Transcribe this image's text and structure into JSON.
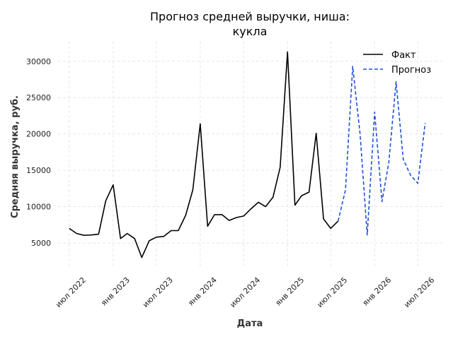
{
  "chart_data": {
    "type": "line",
    "title_lines": [
      "Прогноз средней выручки, ниша:",
      "кукла"
    ],
    "xlabel": "Дата",
    "ylabel": "Средняя выручка, руб.",
    "x_ticks": [
      "2022-07-01",
      "2023-01-01",
      "2023-07-01",
      "2024-01-01",
      "2024-07-01",
      "2025-01-01",
      "2025-07-01",
      "2026-01-01",
      "2026-07-01"
    ],
    "x_tick_labels": [
      "июл 2022",
      "янв 2023",
      "июл 2023",
      "янв 2024",
      "июл 2024",
      "янв 2025",
      "июл 2025",
      "янв 2026",
      "июл 2026"
    ],
    "y_ticks": [
      5000,
      10000,
      15000,
      20000,
      25000,
      30000
    ],
    "y_tick_labels": [
      "5000",
      "10000",
      "15000",
      "20000",
      "25000",
      "30000"
    ],
    "xlim": [
      "2022-05-15",
      "2026-10-15"
    ],
    "ylim": [
      1500,
      32800
    ],
    "grid": true,
    "legend_position": "top-right",
    "series": [
      {
        "name": "Факт",
        "color": "#000000",
        "style": "solid",
        "x": [
          "2022-07-01",
          "2022-08-01",
          "2022-09-01",
          "2022-10-01",
          "2022-11-01",
          "2022-12-01",
          "2023-01-01",
          "2023-02-01",
          "2023-03-01",
          "2023-04-01",
          "2023-05-01",
          "2023-06-01",
          "2023-07-01",
          "2023-08-01",
          "2023-09-01",
          "2023-10-01",
          "2023-11-01",
          "2023-12-01",
          "2024-01-01",
          "2024-02-01",
          "2024-03-01",
          "2024-04-01",
          "2024-05-01",
          "2024-06-01",
          "2024-07-01",
          "2024-08-01",
          "2024-09-01",
          "2024-10-01",
          "2024-11-01",
          "2024-12-01",
          "2025-01-01",
          "2025-02-01",
          "2025-03-01",
          "2025-04-01",
          "2025-05-01",
          "2025-06-01",
          "2025-07-01",
          "2025-08-01"
        ],
        "values": [
          7000,
          6300,
          6050,
          6100,
          6200,
          10800,
          13000,
          5600,
          6300,
          5600,
          3000,
          5300,
          5800,
          5900,
          6700,
          6700,
          8800,
          12300,
          21400,
          7300,
          8900,
          8900,
          8100,
          8500,
          8700,
          9700,
          10600,
          10000,
          11300,
          15400,
          31300,
          10200,
          11500,
          12000,
          20100,
          8300,
          7000,
          8000
        ]
      },
      {
        "name": "Прогноз",
        "color": "#1f4fd8",
        "style": "dashed",
        "x": [
          "2025-08-01",
          "2025-09-01",
          "2025-10-01",
          "2025-11-01",
          "2025-12-01",
          "2026-01-01",
          "2026-02-01",
          "2026-03-01",
          "2026-04-01",
          "2026-05-01",
          "2026-06-01",
          "2026-07-01",
          "2026-08-01"
        ],
        "values": [
          8000,
          12300,
          29300,
          20000,
          6100,
          23000,
          10700,
          16000,
          27200,
          16500,
          14300,
          13200,
          21500
        ]
      }
    ]
  }
}
